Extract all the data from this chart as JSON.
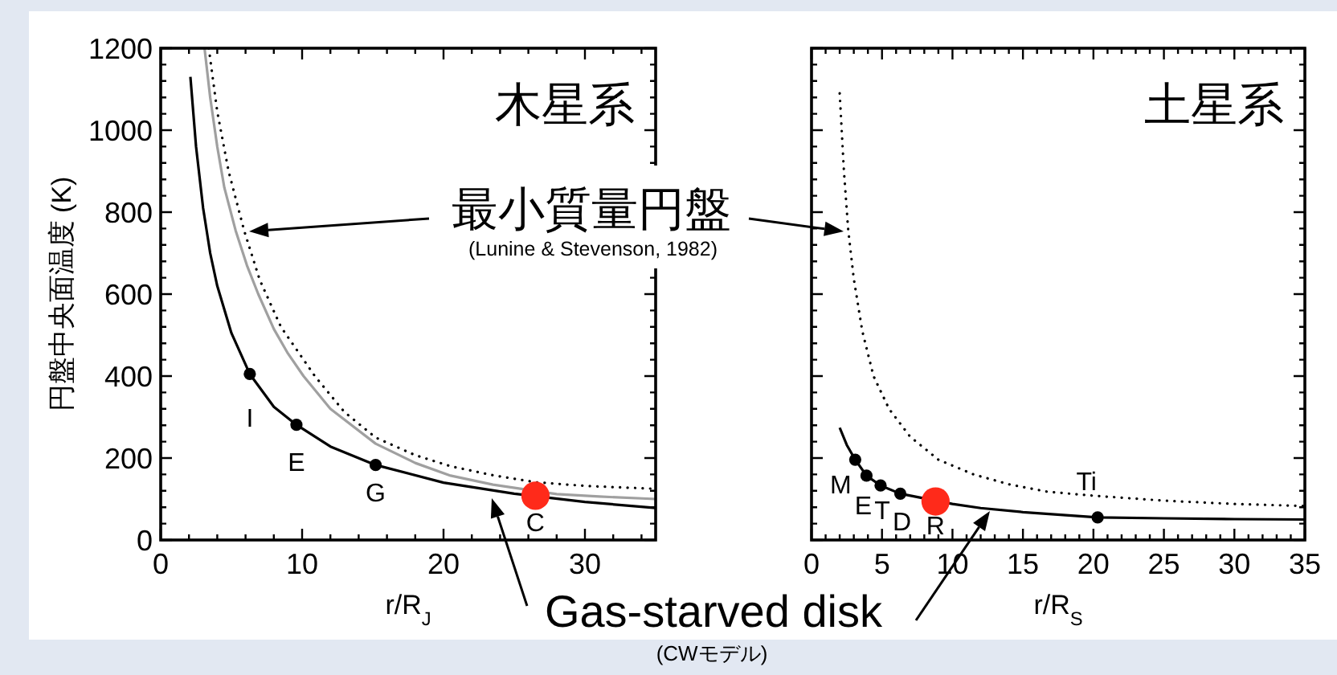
{
  "chart_data": [
    {
      "type": "line",
      "title": "木星系",
      "xlabel": "r/R$_{J}$",
      "ylabel": "円盤中央面温度 (K)",
      "xlim": [
        0,
        35
      ],
      "ylim": [
        0,
        1200
      ],
      "xticks": [
        0,
        10,
        20,
        30
      ],
      "yticks": [
        0,
        200,
        400,
        600,
        800,
        1000,
        1200
      ],
      "series": [
        {
          "color": "#a0a0a0",
          "line_style": "solid",
          "x": [
            3.1,
            3.5,
            4,
            4.5,
            5.3,
            6.1,
            6.9,
            8,
            9,
            10.1,
            12,
            15.2,
            18,
            20.5,
            23.5,
            28,
            31,
            35
          ],
          "values": [
            1200,
            1080,
            960,
            860,
            755,
            670,
            600,
            515,
            455,
            400,
            320,
            235,
            188,
            157,
            135,
            112,
            106,
            100
          ]
        },
        {
          "color": "#000000",
          "line_style": "dotted",
          "x": [
            3.4,
            4,
            4.8,
            5.9,
            7,
            8.5,
            10.9,
            13,
            15.2,
            18,
            20.5,
            23.5,
            26.5,
            30,
            35
          ],
          "values": [
            1200,
            1045,
            900,
            755,
            635,
            520,
            400,
            312,
            250,
            207,
            180,
            158,
            141,
            132,
            125
          ]
        },
        {
          "color": "#000000",
          "line_style": "solid",
          "x": [
            2.1,
            2.5,
            3,
            3.5,
            4,
            5,
            6.3,
            8,
            9.6,
            12,
            15.2,
            20,
            25,
            30,
            35
          ],
          "values": [
            1130,
            960,
            810,
            700,
            620,
            505,
            405,
            325,
            281,
            228,
            183,
            140,
            113,
            93,
            78
          ]
        },
        {
          "type": "scatter",
          "color": "#000000",
          "marker": "circle",
          "x": [
            6.3,
            9.6,
            15.2
          ],
          "values": [
            405,
            281,
            183
          ]
        },
        {
          "type": "scatter",
          "color": "#ff2a1a",
          "marker": "circle",
          "x": [
            26.5
          ],
          "values": [
            108
          ]
        }
      ],
      "annotations": [
        {
          "text": "I",
          "x": 6.3,
          "y": 405
        },
        {
          "text": "E",
          "x": 9.6,
          "y": 281
        },
        {
          "text": "G",
          "x": 15.2,
          "y": 183
        },
        {
          "text": "C",
          "x": 26.5,
          "y": 108
        }
      ]
    },
    {
      "type": "line",
      "title": "土星系",
      "xlabel": "r/R$_{S}$",
      "xlim": [
        0,
        35
      ],
      "ylim": [
        0,
        1200
      ],
      "xticks": [
        0,
        5,
        10,
        15,
        20,
        25,
        30,
        35
      ],
      "yticks": [
        0,
        200,
        400,
        600,
        800,
        1000,
        1200
      ],
      "tick_labels": "x",
      "series": [
        {
          "color": "#000000",
          "line_style": "dotted",
          "x": [
            2.0,
            2.3,
            2.6,
            3.0,
            3.6,
            4.4,
            5.5,
            7,
            9,
            11.5,
            14,
            16.7,
            20,
            25,
            30,
            35
          ],
          "values": [
            1090,
            900,
            757,
            637,
            510,
            400,
            320,
            252,
            196,
            160,
            136,
            118,
            108,
            96,
            88,
            83
          ]
        },
        {
          "color": "#000000",
          "line_style": "solid",
          "x": [
            2.0,
            2.5,
            3.1,
            3.9,
            4.9,
            6.3,
            10,
            12,
            15,
            20.3,
            25,
            30,
            35
          ],
          "values": [
            274,
            232,
            196,
            157,
            133,
            113,
            88,
            78,
            68,
            55,
            53,
            51,
            50
          ]
        },
        {
          "type": "scatter",
          "color": "#000000",
          "marker": "circle",
          "x": [
            3.1,
            3.9,
            4.9,
            6.3,
            20.3
          ],
          "values": [
            196,
            157,
            133,
            113,
            55
          ]
        },
        {
          "type": "scatter",
          "color": "#ff2a1a",
          "marker": "circle",
          "x": [
            8.8
          ],
          "values": [
            94
          ]
        }
      ],
      "annotations": [
        {
          "text": "M",
          "x": 3.1,
          "y": 196
        },
        {
          "text": "E",
          "x": 3.9,
          "y": 157
        },
        {
          "text": "T",
          "x": 4.9,
          "y": 133
        },
        {
          "text": "D",
          "x": 6.3,
          "y": 113
        },
        {
          "text": "R",
          "x": 8.8,
          "y": 94
        },
        {
          "text": "Ti",
          "x": 20.3,
          "y": 55
        }
      ]
    },
    {
      "type": "other",
      "annotations": [
        "最小質量円盤",
        "(Lunine & Stevenson, 1982)",
        "Gas-starved disk",
        "(CWモデル)"
      ]
    }
  ]
}
